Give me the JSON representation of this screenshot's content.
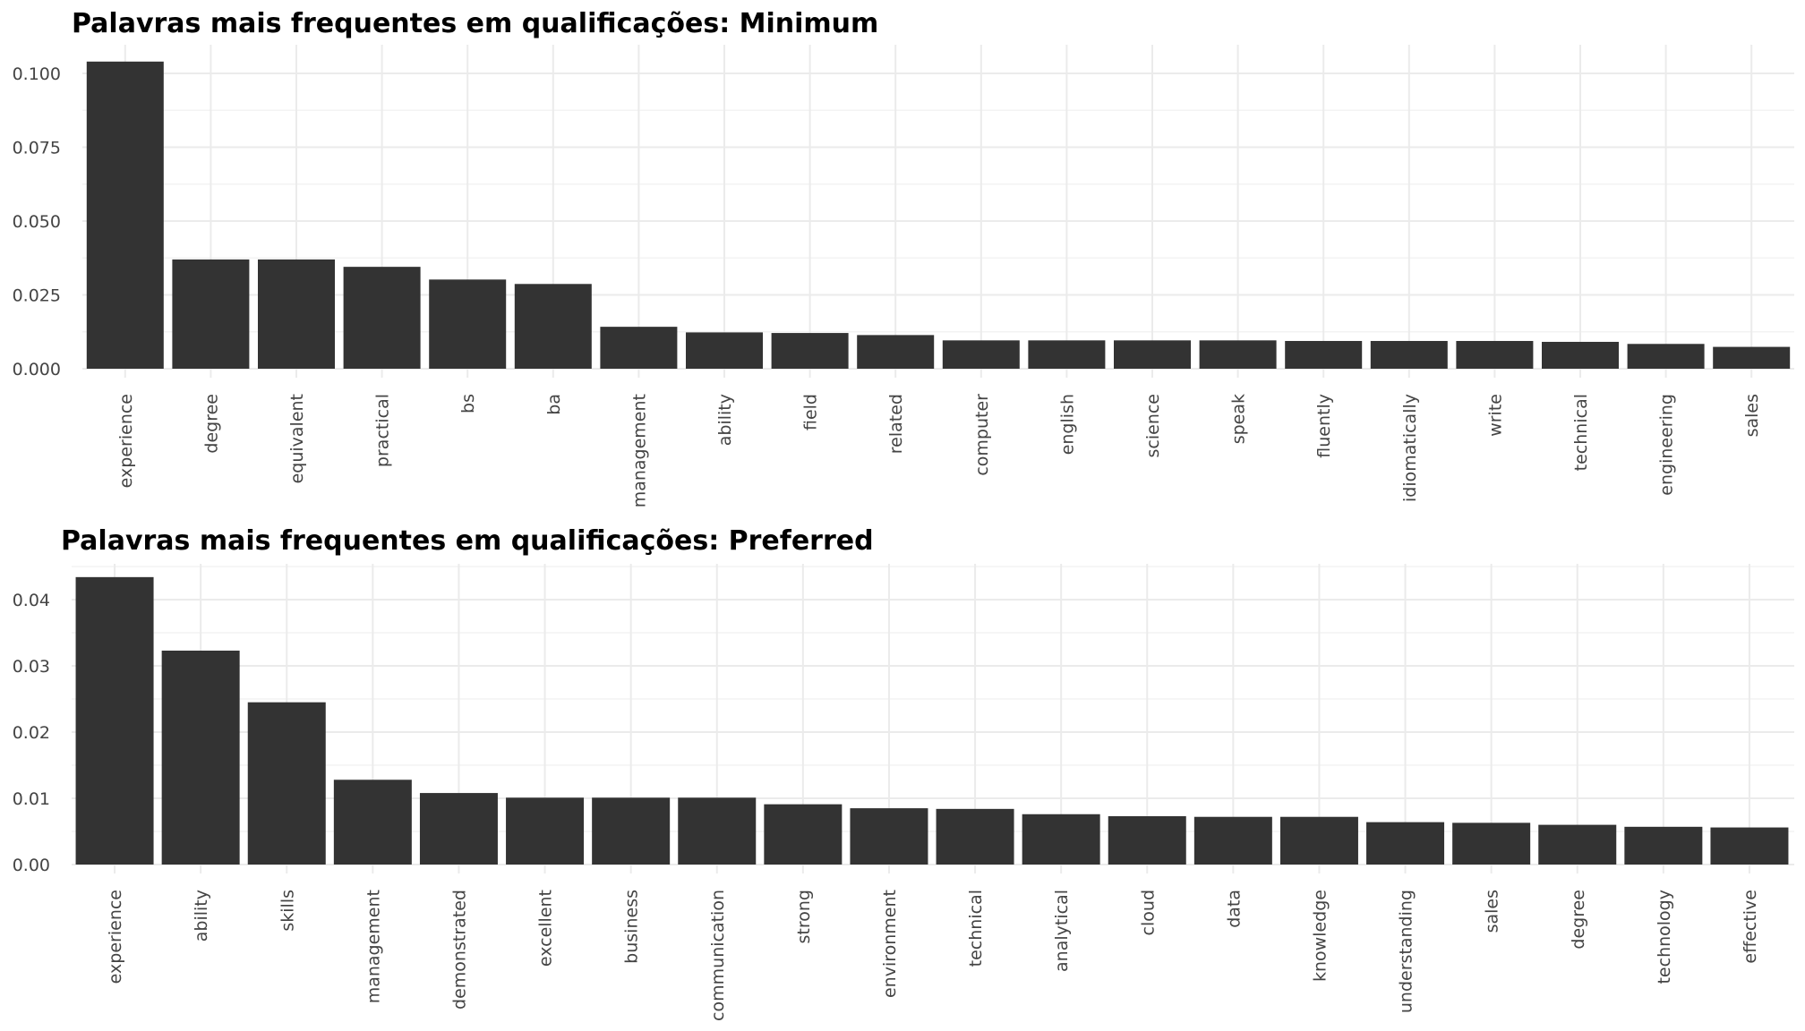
{
  "chart_data": [
    {
      "type": "bar",
      "title": "Palavras mais frequentes em qualificações: Minimum",
      "xlabel": "",
      "ylabel": "",
      "categories": [
        "experience",
        "degree",
        "equivalent",
        "practical",
        "bs",
        "ba",
        "management",
        "ability",
        "field",
        "related",
        "computer",
        "english",
        "science",
        "speak",
        "fluently",
        "idiomatically",
        "write",
        "technical",
        "engineering",
        "sales"
      ],
      "values": [
        0.104,
        0.037,
        0.037,
        0.0345,
        0.0302,
        0.0287,
        0.0142,
        0.0123,
        0.0121,
        0.0114,
        0.0096,
        0.0096,
        0.0096,
        0.0096,
        0.0094,
        0.0094,
        0.0094,
        0.0091,
        0.0084,
        0.0074
      ],
      "ylim": [
        0,
        0.1
      ],
      "yticks": [
        0,
        0.025,
        0.05,
        0.075,
        0.1
      ],
      "ytick_labels": [
        "0.000",
        "0.025",
        "0.050",
        "0.075",
        "0.100"
      ],
      "grid": true,
      "bar_color": "#333333"
    },
    {
      "type": "bar",
      "title": "Palavras mais frequentes em qualificações: Preferred",
      "xlabel": "",
      "ylabel": "",
      "categories": [
        "experience",
        "ability",
        "skills",
        "management",
        "demonstrated",
        "excellent",
        "business",
        "communication",
        "strong",
        "environment",
        "technical",
        "analytical",
        "cloud",
        "data",
        "knowledge",
        "understanding",
        "sales",
        "degree",
        "technology",
        "effective"
      ],
      "values": [
        0.0434,
        0.0323,
        0.0245,
        0.0128,
        0.0108,
        0.0101,
        0.0101,
        0.0101,
        0.0091,
        0.0085,
        0.0084,
        0.0076,
        0.0073,
        0.0072,
        0.0072,
        0.0064,
        0.0063,
        0.006,
        0.0057,
        0.0056
      ],
      "ylim": [
        0,
        0.04
      ],
      "yticks": [
        0,
        0.01,
        0.02,
        0.03,
        0.04
      ],
      "ytick_labels": [
        "0.00",
        "0.01",
        "0.02",
        "0.03",
        "0.04"
      ],
      "grid": true,
      "bar_color": "#333333"
    }
  ]
}
